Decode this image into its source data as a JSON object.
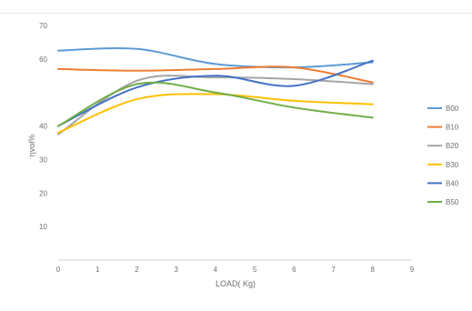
{
  "chart_data": {
    "type": "line",
    "xlabel": "LOAD( Kg)",
    "ylabel": "ηvol%",
    "xlim": [
      0,
      9
    ],
    "ylim": [
      0,
      70
    ],
    "xticks": [
      "0",
      "1",
      "2",
      "3",
      "4",
      "5",
      "6",
      "7",
      "8",
      "9"
    ],
    "yticks": [
      "10",
      "20",
      "30",
      "40",
      "60",
      "70"
    ],
    "grid": false,
    "legend_position": "right",
    "series": [
      {
        "name": "B00",
        "color": "#5b9bd5",
        "x": [
          0,
          2,
          4,
          6,
          8
        ],
        "y": [
          62.5,
          63,
          58.5,
          57.5,
          59
        ]
      },
      {
        "name": "B10",
        "color": "#ed7d31",
        "x": [
          0,
          2,
          4,
          6,
          8
        ],
        "y": [
          57,
          56.5,
          57,
          57.5,
          53
        ]
      },
      {
        "name": "B20",
        "color": "#a5a5a5",
        "x": [
          0,
          2,
          4,
          6,
          8
        ],
        "y": [
          37.5,
          53.5,
          54.5,
          54,
          52.5
        ]
      },
      {
        "name": "B30",
        "color": "#ffc000",
        "x": [
          0,
          2,
          4,
          6,
          8
        ],
        "y": [
          38,
          48,
          49.5,
          47.5,
          46.5
        ]
      },
      {
        "name": "B40",
        "color": "#4472c4",
        "x": [
          0,
          2,
          4,
          6,
          8
        ],
        "y": [
          40,
          51.5,
          55,
          52,
          59.5
        ]
      },
      {
        "name": "B50",
        "color": "#70ad47",
        "x": [
          0,
          2,
          4,
          6,
          8
        ],
        "y": [
          40,
          52.5,
          50,
          45.5,
          42.5
        ]
      }
    ]
  }
}
